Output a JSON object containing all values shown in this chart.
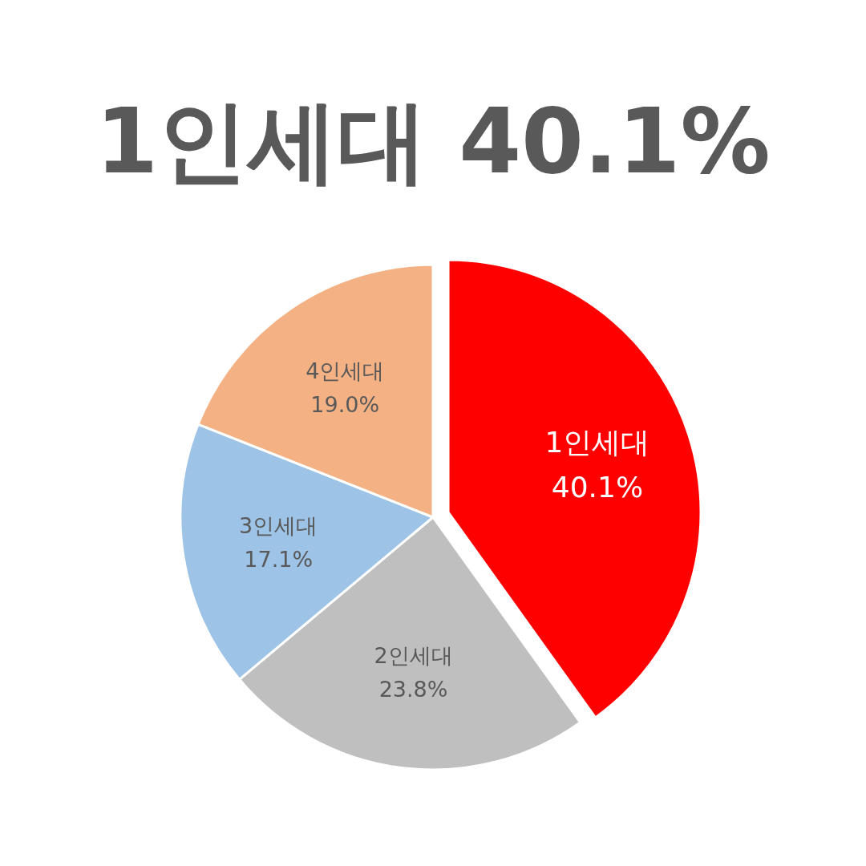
{
  "chart_data": {
    "type": "pie",
    "title": "1인세대 40.1%",
    "categories": [
      "1인세대",
      "2인세대",
      "3인세대",
      "4인세대"
    ],
    "values": [
      40.1,
      23.8,
      17.1,
      19.0
    ],
    "colors": [
      "#ff0000",
      "#bfbfbf",
      "#9dc3e6",
      "#f4b183"
    ],
    "value_labels": [
      "40.1%",
      "23.8%",
      "17.1%",
      "19.0%"
    ],
    "legend": false
  }
}
